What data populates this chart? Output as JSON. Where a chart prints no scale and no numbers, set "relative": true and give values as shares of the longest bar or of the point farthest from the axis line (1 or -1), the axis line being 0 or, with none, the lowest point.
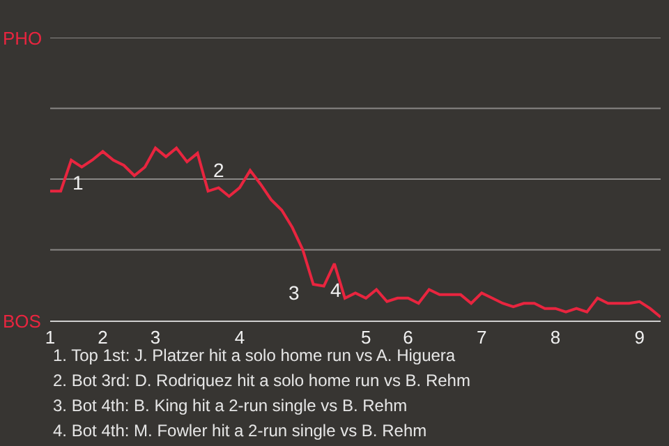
{
  "chart_data": {
    "type": "line",
    "relative": true,
    "categories": [
      "1",
      null,
      null,
      null,
      null,
      "2",
      null,
      null,
      null,
      null,
      "3",
      null,
      null,
      null,
      null,
      null,
      null,
      null,
      "4",
      null,
      null,
      null,
      null,
      null,
      null,
      null,
      null,
      null,
      null,
      null,
      "5",
      null,
      null,
      null,
      "6",
      null,
      null,
      null,
      null,
      null,
      null,
      "7",
      null,
      null,
      null,
      null,
      null,
      null,
      "8",
      null,
      null,
      null,
      null,
      null,
      null,
      null,
      "9",
      null,
      null
    ],
    "series": [
      {
        "color": "#e8253f",
        "values": [
          0.75,
          0.75,
          0.93,
          0.89,
          0.93,
          0.98,
          0.93,
          0.9,
          0.84,
          0.89,
          1,
          0.95,
          1,
          0.92,
          0.97,
          0.75,
          0.77,
          0.72,
          0.77,
          0.87,
          0.79,
          0.7,
          0.64,
          0.54,
          0.41,
          0.21,
          0.2,
          0.33,
          0.13,
          0.16,
          0.13,
          0.18,
          0.11,
          0.13,
          0.13,
          0.1,
          0.18,
          0.15,
          0.15,
          0.15,
          0.1,
          0.16,
          0.13,
          0.1,
          0.08,
          0.1,
          0.1,
          0.07,
          0.07,
          0.05,
          0.07,
          0.05,
          0.13,
          0.1,
          0.1,
          0.1,
          0.11,
          0.07,
          0.02
        ]
      }
    ],
    "ref_lines": [
      {
        "axis": "y",
        "value": 0.41,
        "color": "#8a8886"
      },
      {
        "axis": "y",
        "value": 0.82,
        "color": "#8a8886"
      },
      {
        "axis": "y",
        "value": 1.23,
        "color": "#8a8886"
      },
      {
        "axis": "y",
        "value": 1.64,
        "color": "#8a8886"
      }
    ],
    "marker": "none",
    "line_style": "solid",
    "annotations": [
      "PHO",
      "BOS",
      "1",
      "2",
      "3",
      "4",
      "1. Top 1st: J. Platzer hit a solo home run vs A. Higuera",
      "2. Bot 3rd: D. Rodriquez hit a solo home run vs B. Rehm",
      "3. Bot 4th: B. King hit a 2-run single vs B. Rehm",
      "4. Bot 4th: M. Fowler hit a 2-run single vs B. Rehm"
    ]
  }
}
